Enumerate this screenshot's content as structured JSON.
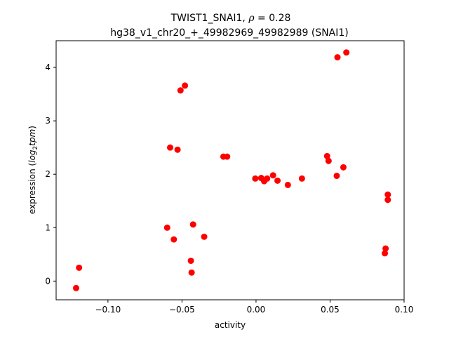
{
  "chart_data": {
    "type": "scatter",
    "title": {
      "line1_prefix": "TWIST1_SNAI1, ",
      "line1_rho": "ρ",
      "line1_suffix": " = 0.28",
      "line2": "hg38_v1_chr20_+_49982969_49982989 (SNAI1)"
    },
    "xlabel": "activity",
    "ylabel": {
      "prefix": "expression (",
      "log": "log",
      "sub": "2",
      "tpm": "tpm",
      "suffix": ")"
    },
    "xlim": [
      -0.135,
      0.1
    ],
    "ylim": [
      -0.35,
      4.5
    ],
    "xticks": [
      {
        "value": -0.1,
        "label": "−0.10"
      },
      {
        "value": -0.05,
        "label": "−0.05"
      },
      {
        "value": 0.0,
        "label": "0.00"
      },
      {
        "value": 0.05,
        "label": "0.05"
      },
      {
        "value": 0.1,
        "label": "0.10"
      }
    ],
    "yticks": [
      {
        "value": 0,
        "label": "0"
      },
      {
        "value": 1,
        "label": "1"
      },
      {
        "value": 2,
        "label": "2"
      },
      {
        "value": 3,
        "label": "3"
      },
      {
        "value": 4,
        "label": "4"
      }
    ],
    "marker_color": "#ff0000",
    "grid": false,
    "points": [
      {
        "x": -0.1215,
        "y": -0.13
      },
      {
        "x": -0.1195,
        "y": 0.25
      },
      {
        "x": -0.06,
        "y": 1.0
      },
      {
        "x": -0.058,
        "y": 2.5
      },
      {
        "x": -0.0555,
        "y": 0.78
      },
      {
        "x": -0.053,
        "y": 2.46
      },
      {
        "x": -0.051,
        "y": 3.57
      },
      {
        "x": -0.048,
        "y": 3.66
      },
      {
        "x": -0.044,
        "y": 0.38
      },
      {
        "x": -0.0435,
        "y": 0.16
      },
      {
        "x": -0.0425,
        "y": 1.06
      },
      {
        "x": -0.035,
        "y": 0.83
      },
      {
        "x": -0.022,
        "y": 2.33
      },
      {
        "x": -0.0195,
        "y": 2.33
      },
      {
        "x": -0.0005,
        "y": 1.92
      },
      {
        "x": 0.0035,
        "y": 1.93
      },
      {
        "x": 0.0055,
        "y": 1.87
      },
      {
        "x": 0.0075,
        "y": 1.92
      },
      {
        "x": 0.0115,
        "y": 1.98
      },
      {
        "x": 0.0145,
        "y": 1.88
      },
      {
        "x": 0.0215,
        "y": 1.8
      },
      {
        "x": 0.031,
        "y": 1.92
      },
      {
        "x": 0.048,
        "y": 2.34
      },
      {
        "x": 0.049,
        "y": 2.25
      },
      {
        "x": 0.0545,
        "y": 1.97
      },
      {
        "x": 0.055,
        "y": 4.19
      },
      {
        "x": 0.059,
        "y": 2.13
      },
      {
        "x": 0.061,
        "y": 4.28
      },
      {
        "x": 0.087,
        "y": 0.52
      },
      {
        "x": 0.0875,
        "y": 0.61
      },
      {
        "x": 0.089,
        "y": 1.52
      },
      {
        "x": 0.089,
        "y": 1.62
      }
    ]
  }
}
